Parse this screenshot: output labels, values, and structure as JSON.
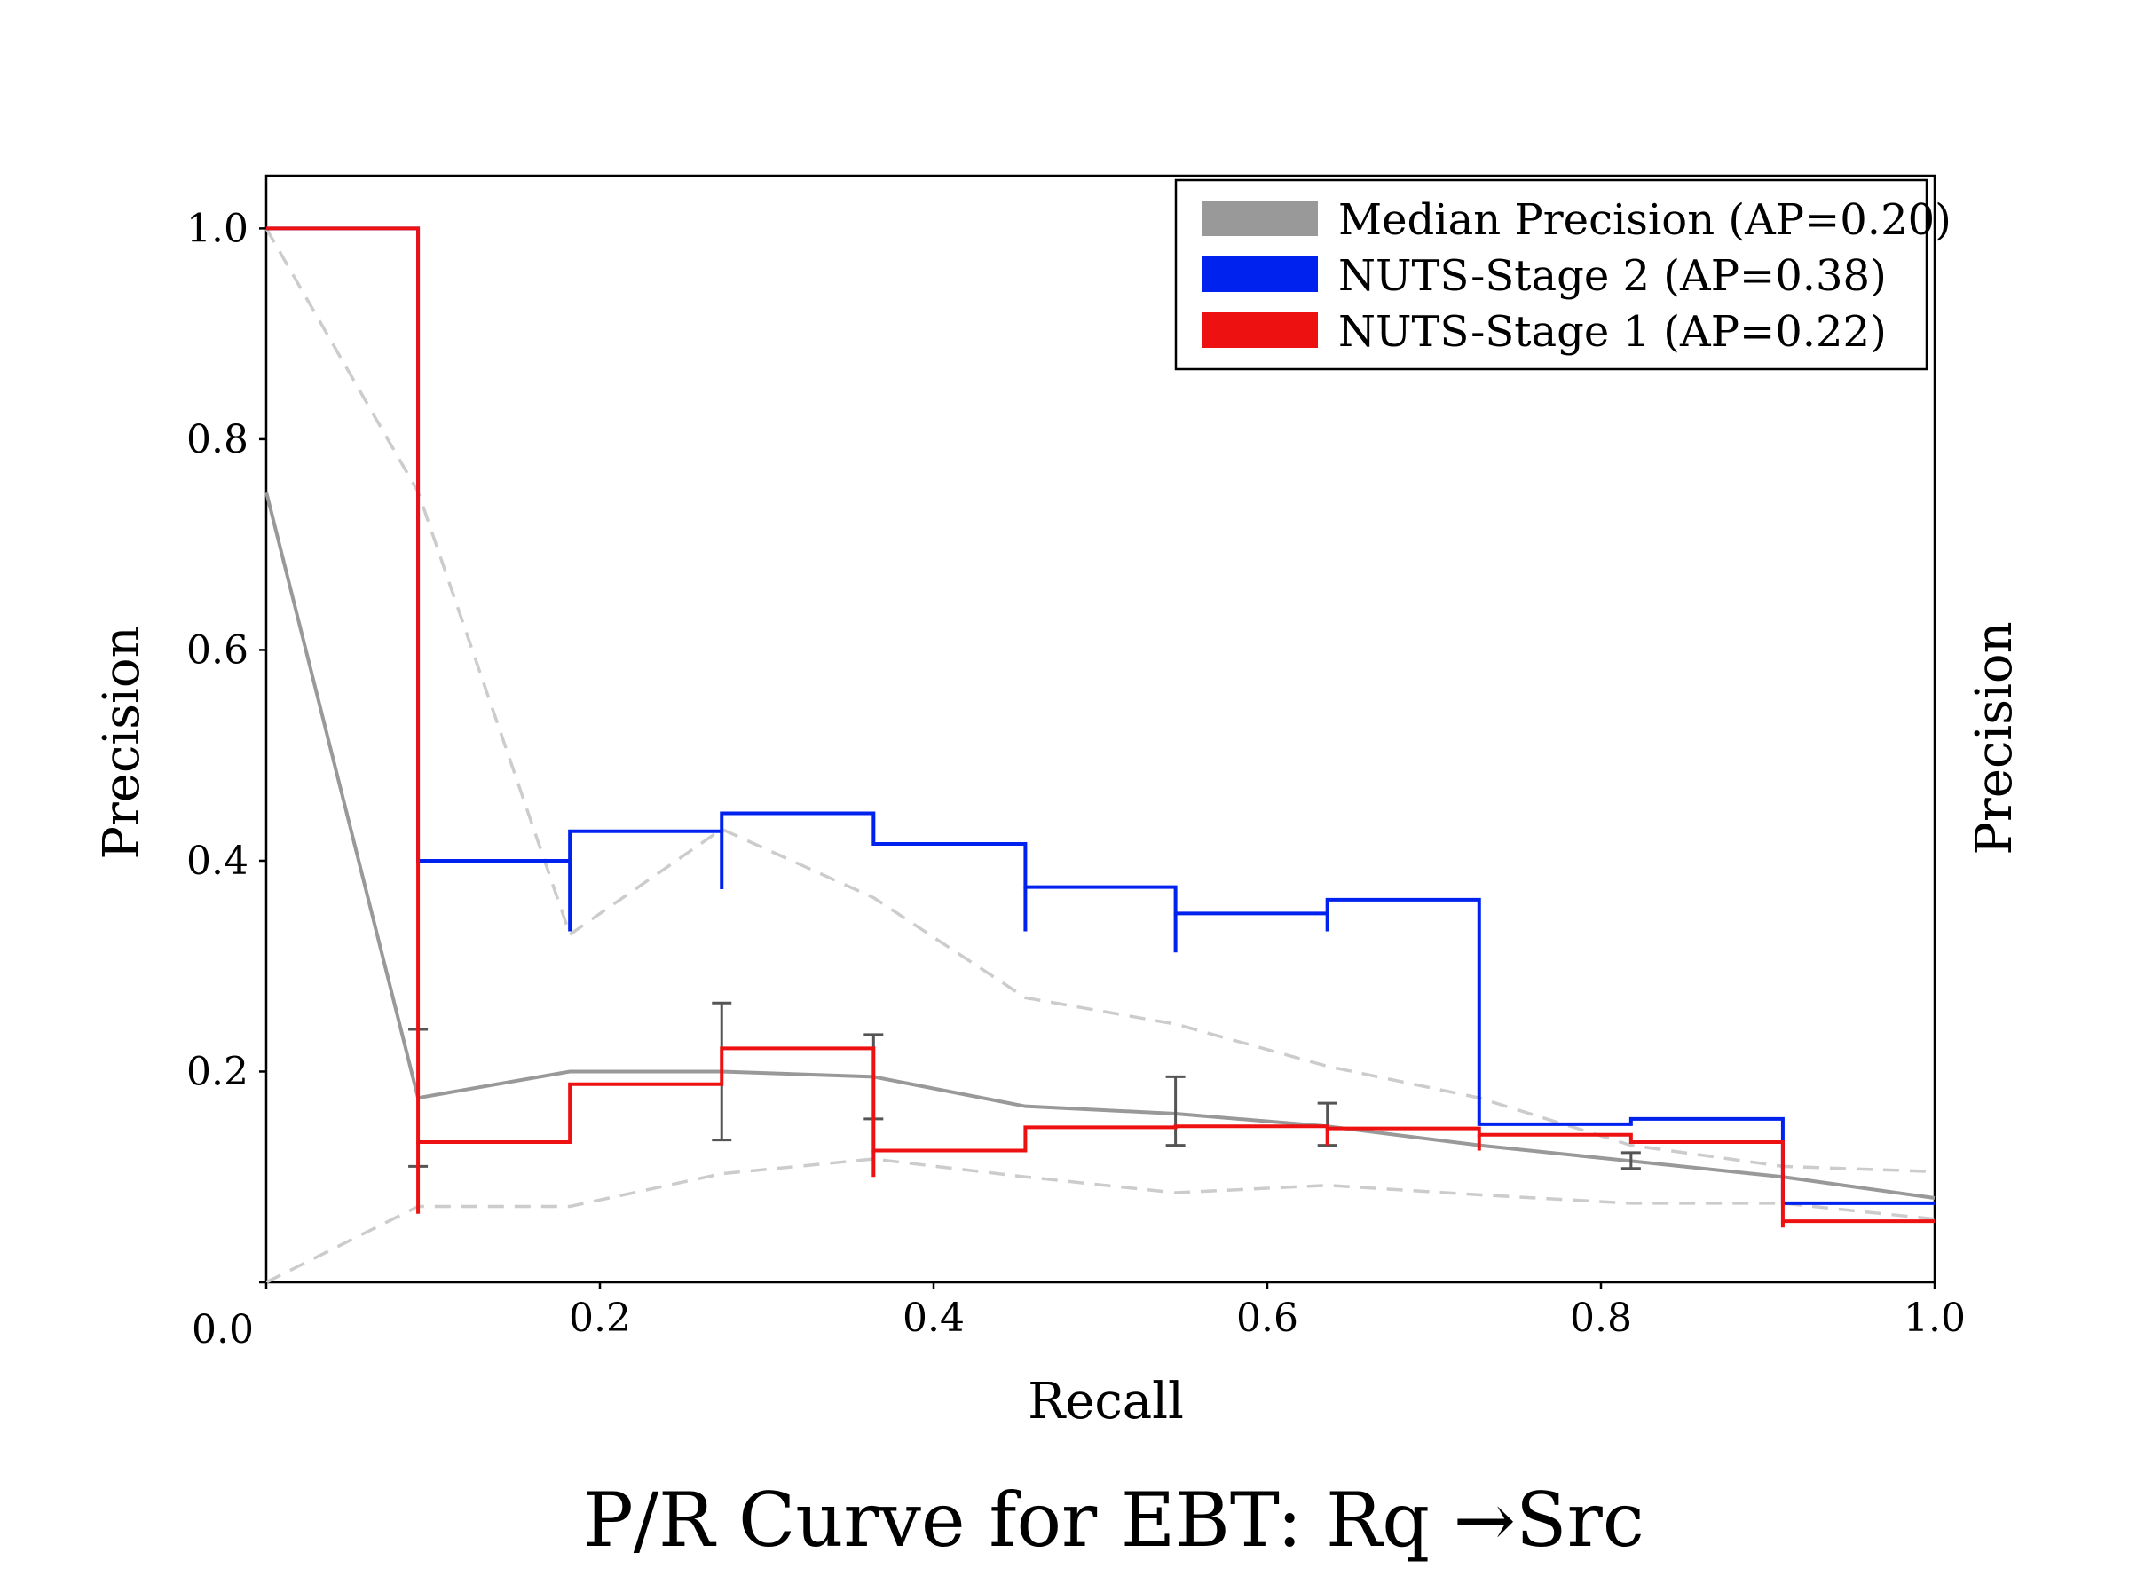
{
  "chart_data": {
    "type": "line",
    "title": "P/R Curve for EBT: Rq →Src",
    "xlabel": "Recall",
    "ylabel": "Precision",
    "ylabel_right": "Precision",
    "xlim": [
      0.0,
      1.0
    ],
    "ylim": [
      0.0,
      1.05
    ],
    "x_ticks": [
      "0.0",
      "0.2",
      "0.4",
      "0.6",
      "0.8",
      "1.0"
    ],
    "y_ticks": [
      "0.2",
      "0.4",
      "0.6",
      "0.8",
      "1.0"
    ],
    "grid": false,
    "legend_position": "top-right",
    "legend": [
      {
        "label": "Median Precision (AP=0.20)",
        "color": "#999999"
      },
      {
        "label": "NUTS-Stage 2 (AP=0.38)",
        "color": "#0022ee"
      },
      {
        "label": "NUTS-Stage 1 (AP=0.22)",
        "color": "#ee1111"
      }
    ],
    "series": [
      {
        "name": "Median Precision (AP=0.20)",
        "style": "line",
        "color": "#999999",
        "x": [
          0.0,
          0.091,
          0.182,
          0.273,
          0.364,
          0.455,
          0.545,
          0.636,
          0.727,
          0.818,
          0.909,
          1.0
        ],
        "y": [
          0.75,
          0.175,
          0.2,
          0.2,
          0.195,
          0.167,
          0.16,
          0.148,
          0.13,
          0.115,
          0.1,
          0.08
        ],
        "error_bars": [
          {
            "x": 0.091,
            "low": 0.11,
            "high": 0.24
          },
          {
            "x": 0.273,
            "low": 0.135,
            "high": 0.265
          },
          {
            "x": 0.364,
            "low": 0.155,
            "high": 0.235
          },
          {
            "x": 0.545,
            "low": 0.13,
            "high": 0.195
          },
          {
            "x": 0.636,
            "low": 0.13,
            "high": 0.17
          },
          {
            "x": 0.818,
            "low": 0.108,
            "high": 0.123
          }
        ]
      },
      {
        "name": "Median Precision (AP=0.20)",
        "style": "dashed-band",
        "color": "#cccccc",
        "x": [
          0.0,
          0.091,
          0.182,
          0.273,
          0.364,
          0.455,
          0.545,
          0.636,
          0.727,
          0.818,
          0.909,
          1.0
        ],
        "upper": [
          1.0,
          0.75,
          0.33,
          0.43,
          0.365,
          0.27,
          0.245,
          0.205,
          0.175,
          0.13,
          0.11,
          0.105
        ],
        "lower": [
          0.0,
          0.072,
          0.072,
          0.103,
          0.117,
          0.1,
          0.085,
          0.092,
          0.083,
          0.075,
          0.075,
          0.06
        ]
      },
      {
        "name": "NUTS-Stage 2 (AP=0.38)",
        "style": "step",
        "color": "#0022ee",
        "steps": [
          {
            "x0": 0.0,
            "x1": 0.091,
            "y": 1.0
          },
          {
            "x0": 0.091,
            "x1": 0.182,
            "y": 0.4
          },
          {
            "x0": 0.182,
            "x1": 0.273,
            "y": 0.428
          },
          {
            "x0": 0.273,
            "x1": 0.364,
            "y": 0.445
          },
          {
            "x0": 0.364,
            "x1": 0.455,
            "y": 0.416
          },
          {
            "x0": 0.455,
            "x1": 0.545,
            "y": 0.375
          },
          {
            "x0": 0.545,
            "x1": 0.636,
            "y": 0.35
          },
          {
            "x0": 0.636,
            "x1": 0.727,
            "y": 0.363
          },
          {
            "x0": 0.727,
            "x1": 0.818,
            "y": 0.15
          },
          {
            "x0": 0.818,
            "x1": 0.909,
            "y": 0.155
          },
          {
            "x0": 0.909,
            "x1": 1.0,
            "y": 0.075
          }
        ],
        "vertical_drops": [
          {
            "x": 0.182,
            "y_low": 0.333
          },
          {
            "x": 0.273,
            "y_low": 0.373
          },
          {
            "x": 0.455,
            "y_low": 0.333
          },
          {
            "x": 0.545,
            "y_low": 0.313
          },
          {
            "x": 0.636,
            "y_low": 0.333
          }
        ]
      },
      {
        "name": "NUTS-Stage 1 (AP=0.22)",
        "style": "step",
        "color": "#ee1111",
        "steps": [
          {
            "x0": 0.0,
            "x1": 0.091,
            "y": 1.0
          },
          {
            "x0": 0.091,
            "x1": 0.182,
            "y": 0.133
          },
          {
            "x0": 0.182,
            "x1": 0.273,
            "y": 0.188
          },
          {
            "x0": 0.273,
            "x1": 0.364,
            "y": 0.222
          },
          {
            "x0": 0.364,
            "x1": 0.455,
            "y": 0.125
          },
          {
            "x0": 0.455,
            "x1": 0.545,
            "y": 0.147
          },
          {
            "x0": 0.545,
            "x1": 0.636,
            "y": 0.148
          },
          {
            "x0": 0.636,
            "x1": 0.727,
            "y": 0.146
          },
          {
            "x0": 0.727,
            "x1": 0.818,
            "y": 0.14
          },
          {
            "x0": 0.818,
            "x1": 0.909,
            "y": 0.133
          },
          {
            "x0": 0.909,
            "x1": 1.0,
            "y": 0.058
          }
        ],
        "vertical_drops": [
          {
            "x": 0.091,
            "y_low": 0.065
          },
          {
            "x": 0.364,
            "y_low": 0.1
          },
          {
            "x": 0.636,
            "y_low": 0.13
          },
          {
            "x": 0.727,
            "y_low": 0.125
          },
          {
            "x": 0.909,
            "y_low": 0.052
          }
        ]
      }
    ]
  }
}
